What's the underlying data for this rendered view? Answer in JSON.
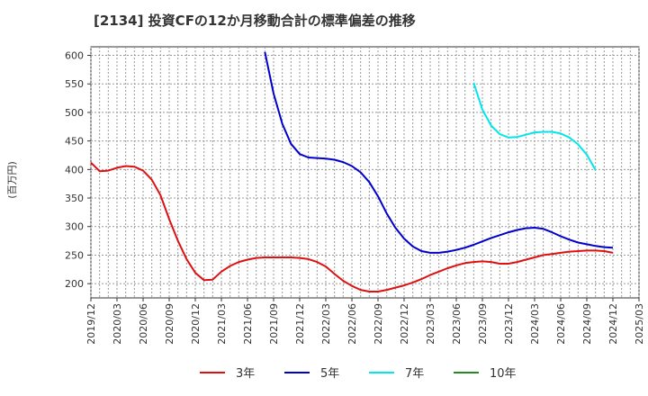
{
  "chart_data": {
    "type": "line",
    "title": "[2134]  投資CFの12か月移動合計の標準偏差の推移",
    "ylabel": "(百万円)",
    "xlabel": "",
    "ylim": [
      175,
      615
    ],
    "yticks": [
      200,
      250,
      300,
      350,
      400,
      450,
      500,
      550,
      600
    ],
    "xlim": [
      "2019-12",
      "2025-03"
    ],
    "xticks": [
      "2019/12",
      "2020/03",
      "2020/06",
      "2020/09",
      "2020/12",
      "2021/03",
      "2021/06",
      "2021/09",
      "2021/12",
      "2022/03",
      "2022/06",
      "2022/09",
      "2022/12",
      "2023/03",
      "2023/06",
      "2023/09",
      "2023/12",
      "2024/03",
      "2024/06",
      "2024/09",
      "2024/12",
      "2025/03"
    ],
    "grid": true,
    "legend_position": "bottom",
    "series": [
      {
        "name": "3年",
        "color": "#dd1111",
        "start": "2019-12",
        "values": [
          412,
          397,
          398,
          403,
          406,
          405,
          398,
          382,
          355,
          313,
          275,
          243,
          219,
          206,
          207,
          221,
          231,
          238,
          242,
          245,
          246,
          246,
          246,
          246,
          245,
          243,
          238,
          230,
          217,
          205,
          196,
          189,
          186,
          186,
          189,
          193,
          197,
          202,
          208,
          215,
          221,
          227,
          232,
          236,
          238,
          239,
          238,
          235,
          235,
          238,
          242,
          246,
          250,
          252,
          254,
          256,
          257,
          258,
          258,
          257,
          254
        ]
      },
      {
        "name": "5年",
        "color": "#0000cc",
        "start": "2021-08",
        "values": [
          606,
          533,
          480,
          445,
          427,
          421,
          420,
          419,
          417,
          413,
          406,
          395,
          378,
          353,
          323,
          298,
          279,
          265,
          257,
          254,
          254,
          256,
          259,
          263,
          268,
          274,
          280,
          285,
          290,
          294,
          297,
          298,
          296,
          290,
          283,
          277,
          272,
          269,
          266,
          264,
          263
        ]
      },
      {
        "name": "7年",
        "color": "#00e5ee",
        "start": "2023-08",
        "values": [
          552,
          505,
          477,
          462,
          456,
          457,
          461,
          465,
          466,
          466,
          463,
          456,
          444,
          426,
          399
        ]
      },
      {
        "name": "10年",
        "color": "#228b22",
        "start": "2024-09",
        "values": []
      }
    ]
  }
}
